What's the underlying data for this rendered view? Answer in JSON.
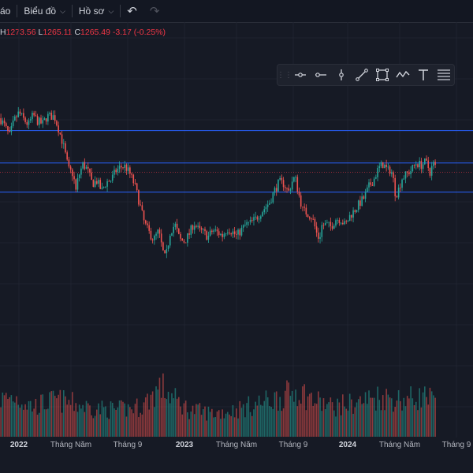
{
  "topbar": {
    "menu_cut": "áo",
    "chart_menu": "Biểu đồ",
    "profile_menu": "Hồ sơ"
  },
  "ohlc": {
    "h_label": "H",
    "h_value": "1273.56",
    "l_label": "L",
    "l_value": "1265.11",
    "c_label": "C",
    "c_value": "1265.49",
    "change": "-3.17 (-0.25%)"
  },
  "drawing_toolbar": {
    "icons": [
      "drag-handle-icon",
      "horizontal-ray-icon",
      "horizontal-line-icon",
      "vertical-line-icon",
      "trend-line-icon",
      "rectangle-icon",
      "path-icon",
      "text-icon",
      "fib-retracement-icon"
    ]
  },
  "colors": {
    "background": "#161a25",
    "up": "#26a69a",
    "down": "#ef5350",
    "level_line": "#2962ff",
    "close_line": "#f23645",
    "grid": "#1f2330"
  },
  "chart_data": {
    "type": "candlestick",
    "price_ylim": [
      900,
      1400
    ],
    "volume_ylim": [
      0,
      100
    ],
    "grid": true,
    "horizontal_levels": [
      1340,
      1282,
      1230
    ],
    "last_price": 1265.49,
    "x_tick_labels": [
      {
        "label": "2022",
        "pos": 0.04,
        "major": true
      },
      {
        "label": "Tháng Năm",
        "pos": 0.15
      },
      {
        "label": "Tháng 9",
        "pos": 0.27
      },
      {
        "label": "2023",
        "pos": 0.39,
        "major": true
      },
      {
        "label": "Tháng Năm",
        "pos": 0.5
      },
      {
        "label": "Tháng 9",
        "pos": 0.62
      },
      {
        "label": "2024",
        "pos": 0.735,
        "major": true
      },
      {
        "label": "Tháng Năm",
        "pos": 0.845
      },
      {
        "label": "Tháng 9",
        "pos": 0.965
      }
    ],
    "close_path": [
      [
        0,
        1362
      ],
      [
        0.01,
        1348
      ],
      [
        0.02,
        1330
      ],
      [
        0.03,
        1358
      ],
      [
        0.04,
        1372
      ],
      [
        0.05,
        1360
      ],
      [
        0.06,
        1350
      ],
      [
        0.07,
        1368
      ],
      [
        0.08,
        1356
      ],
      [
        0.09,
        1352
      ],
      [
        0.1,
        1366
      ],
      [
        0.115,
        1365
      ],
      [
        0.125,
        1340
      ],
      [
        0.135,
        1310
      ],
      [
        0.145,
        1270
      ],
      [
        0.155,
        1262
      ],
      [
        0.16,
        1230
      ],
      [
        0.165,
        1255
      ],
      [
        0.175,
        1280
      ],
      [
        0.185,
        1270
      ],
      [
        0.195,
        1245
      ],
      [
        0.205,
        1250
      ],
      [
        0.215,
        1232
      ],
      [
        0.225,
        1248
      ],
      [
        0.235,
        1252
      ],
      [
        0.245,
        1268
      ],
      [
        0.255,
        1275
      ],
      [
        0.265,
        1276
      ],
      [
        0.275,
        1262
      ],
      [
        0.285,
        1242
      ],
      [
        0.295,
        1210
      ],
      [
        0.305,
        1175
      ],
      [
        0.315,
        1158
      ],
      [
        0.325,
        1145
      ],
      [
        0.335,
        1160
      ],
      [
        0.345,
        1122
      ],
      [
        0.35,
        1110
      ],
      [
        0.36,
        1160
      ],
      [
        0.37,
        1172
      ],
      [
        0.38,
        1145
      ],
      [
        0.39,
        1142
      ],
      [
        0.4,
        1155
      ],
      [
        0.41,
        1175
      ],
      [
        0.42,
        1162
      ],
      [
        0.43,
        1158
      ],
      [
        0.44,
        1150
      ],
      [
        0.45,
        1162
      ],
      [
        0.46,
        1158
      ],
      [
        0.47,
        1152
      ],
      [
        0.48,
        1165
      ],
      [
        0.49,
        1160
      ],
      [
        0.5,
        1152
      ],
      [
        0.51,
        1162
      ],
      [
        0.52,
        1172
      ],
      [
        0.53,
        1175
      ],
      [
        0.54,
        1182
      ],
      [
        0.55,
        1192
      ],
      [
        0.56,
        1202
      ],
      [
        0.57,
        1212
      ],
      [
        0.58,
        1232
      ],
      [
        0.59,
        1248
      ],
      [
        0.6,
        1245
      ],
      [
        0.61,
        1230
      ],
      [
        0.62,
        1255
      ],
      [
        0.625,
        1252
      ],
      [
        0.63,
        1232
      ],
      [
        0.64,
        1198
      ],
      [
        0.65,
        1192
      ],
      [
        0.66,
        1185
      ],
      [
        0.67,
        1155
      ],
      [
        0.675,
        1145
      ],
      [
        0.68,
        1170
      ],
      [
        0.69,
        1172
      ],
      [
        0.7,
        1168
      ],
      [
        0.71,
        1182
      ],
      [
        0.72,
        1182
      ],
      [
        0.73,
        1170
      ],
      [
        0.74,
        1188
      ],
      [
        0.75,
        1198
      ],
      [
        0.76,
        1210
      ],
      [
        0.77,
        1220
      ],
      [
        0.78,
        1240
      ],
      [
        0.79,
        1252
      ],
      [
        0.8,
        1272
      ],
      [
        0.81,
        1280
      ],
      [
        0.82,
        1268
      ],
      [
        0.825,
        1270
      ],
      [
        0.83,
        1262
      ],
      [
        0.835,
        1230
      ],
      [
        0.84,
        1228
      ],
      [
        0.85,
        1255
      ],
      [
        0.86,
        1262
      ],
      [
        0.87,
        1270
      ],
      [
        0.88,
        1282
      ],
      [
        0.89,
        1278
      ],
      [
        0.9,
        1284
      ],
      [
        0.905,
        1275
      ],
      [
        0.91,
        1264
      ],
      [
        0.915,
        1282
      ],
      [
        0.92,
        1276
      ],
      [
        0.922,
        1265.49
      ]
    ],
    "volume_profile": [
      [
        0,
        55
      ],
      [
        0.03,
        60
      ],
      [
        0.07,
        45
      ],
      [
        0.12,
        55
      ],
      [
        0.15,
        50
      ],
      [
        0.2,
        42
      ],
      [
        0.25,
        40
      ],
      [
        0.3,
        45
      ],
      [
        0.34,
        75
      ],
      [
        0.37,
        55
      ],
      [
        0.4,
        40
      ],
      [
        0.45,
        35
      ],
      [
        0.5,
        40
      ],
      [
        0.55,
        50
      ],
      [
        0.6,
        60
      ],
      [
        0.63,
        70
      ],
      [
        0.66,
        55
      ],
      [
        0.7,
        45
      ],
      [
        0.75,
        50
      ],
      [
        0.8,
        60
      ],
      [
        0.85,
        55
      ],
      [
        0.9,
        60
      ],
      [
        0.922,
        50
      ]
    ]
  }
}
